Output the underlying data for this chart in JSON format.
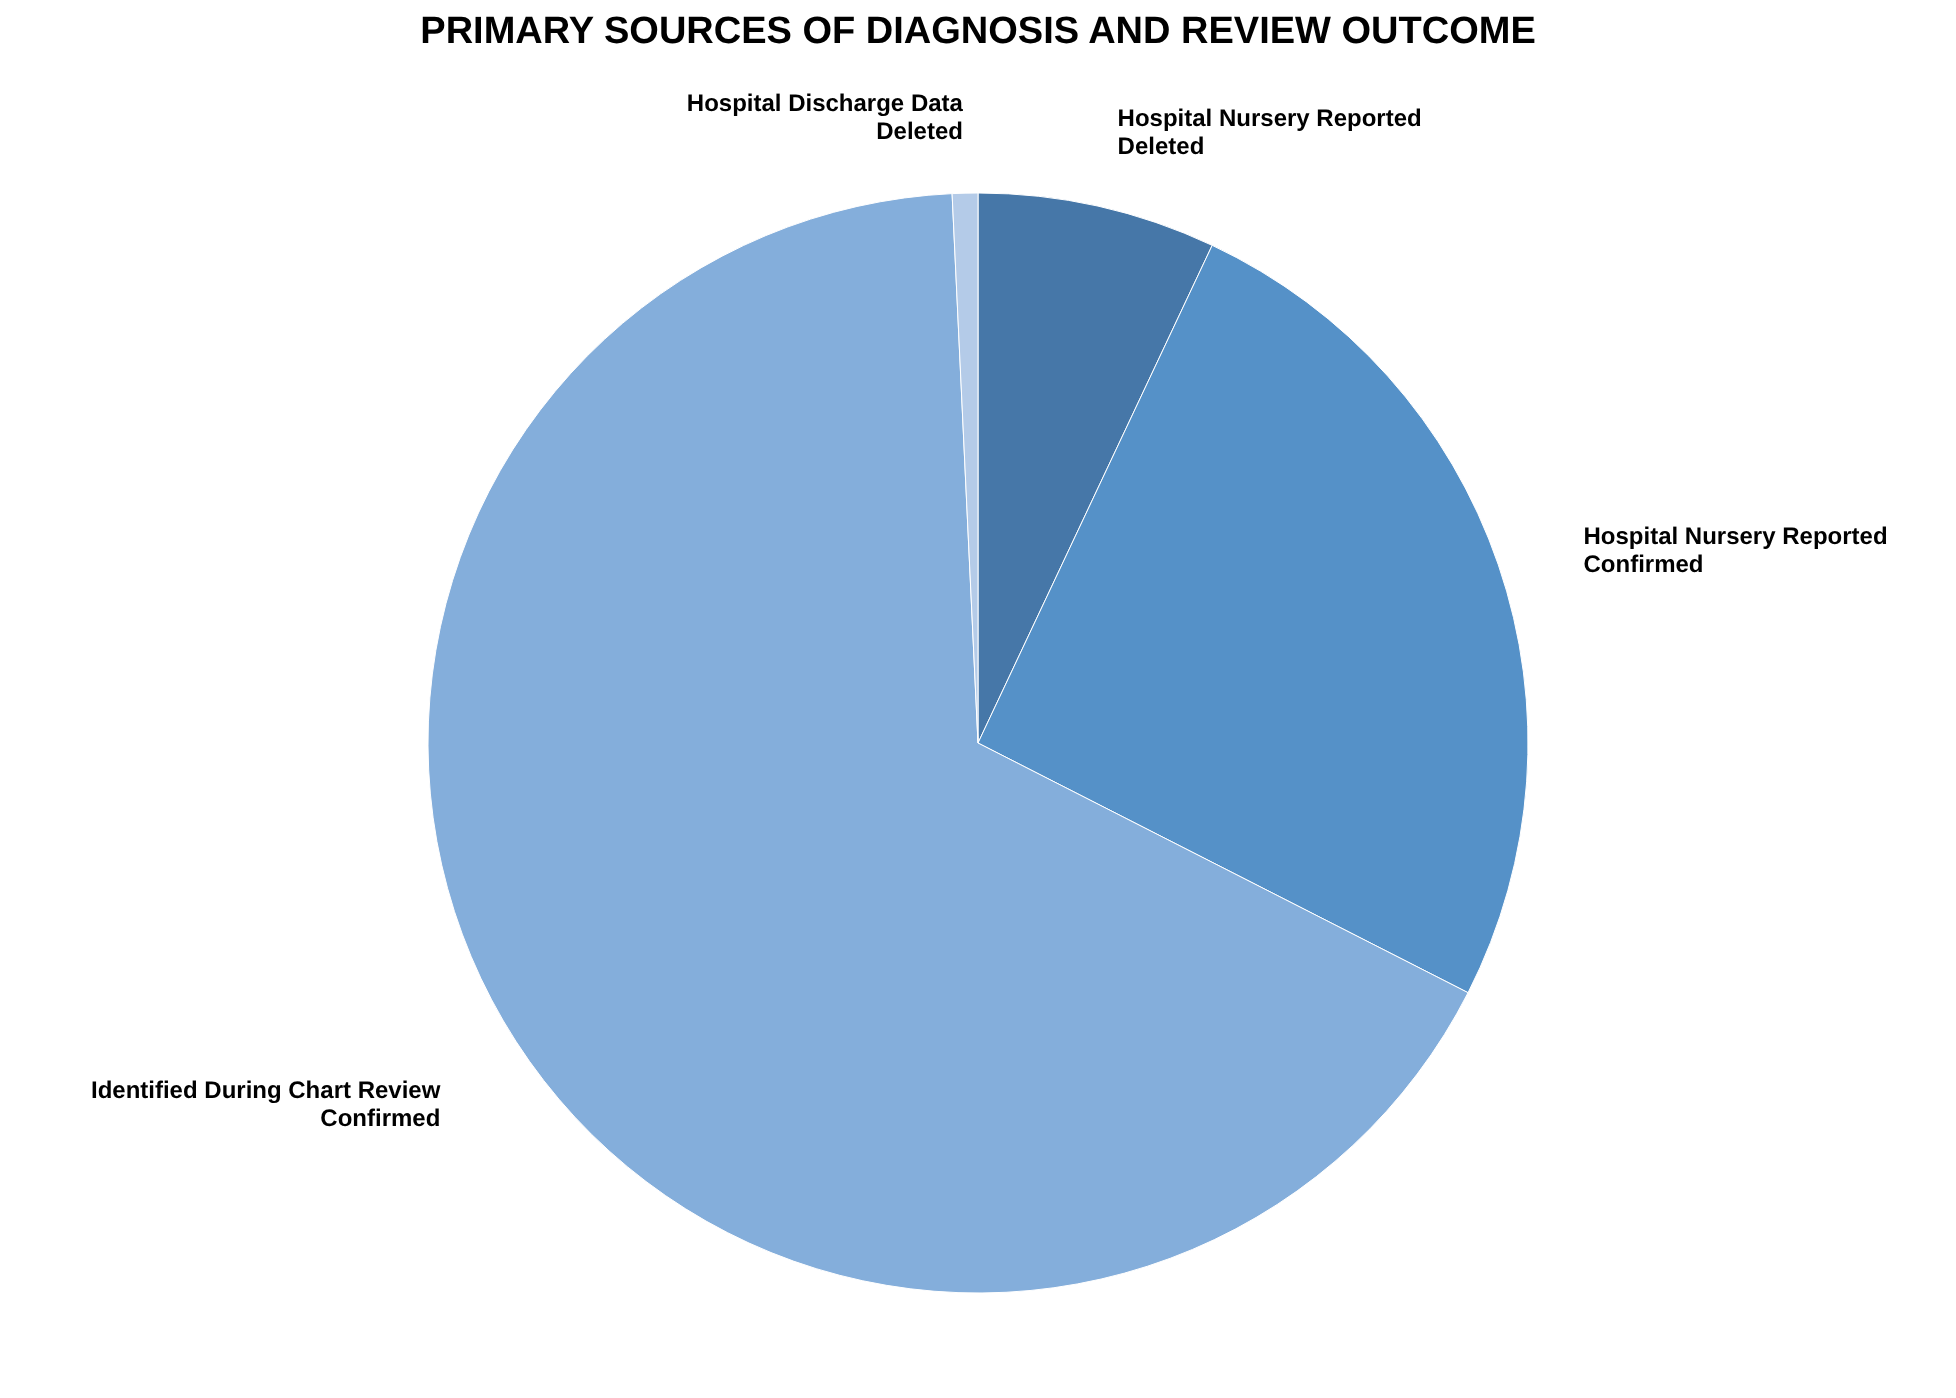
{
  "chart_data": {
    "type": "pie",
    "title": "PRIMARY SOURCES OF DIAGNOSIS AND REVIEW OUTCOME",
    "categories": [
      "Hospital Nursery Reported\nDeleted",
      "Hospital Nursery Reported\nConfirmed",
      "Identified During Chart Review\nConfirmed",
      "Hospital Discharge Data\nDeleted"
    ],
    "values": [
      7,
      25.5,
      66.75,
      0.75
    ],
    "colors": [
      "#4677a8",
      "#5591c8",
      "#84aedb",
      "#b4cbe8"
    ]
  }
}
